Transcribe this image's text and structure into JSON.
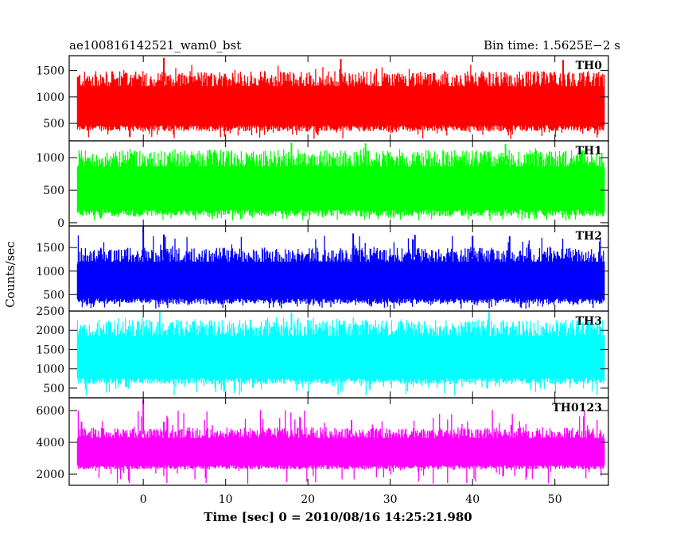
{
  "chart_data": {
    "type": "line",
    "title": "ae100816142521_wam0_bst",
    "subtitle": "Bin time: 1.5625E−2 s",
    "xlabel": "Time [sec] 0 = 2010/08/16 14:25:21.980",
    "ylabel": "Counts/sec",
    "xlim": [
      -9,
      56.5
    ],
    "xticks": [
      "0",
      "10",
      "20",
      "30",
      "40",
      "50"
    ],
    "x_range_of_data": [
      -8,
      56
    ],
    "grid": false,
    "panels": [
      {
        "name": "TH0",
        "color": "#ff0000",
        "ylim": [
          170,
          1780
        ],
        "yticks": [
          "500",
          "1000",
          "1500"
        ],
        "typical_low": 350,
        "typical_high": 1300,
        "min": 200,
        "max": 1750,
        "spikes": [
          {
            "x": 2.5,
            "y": 1740
          },
          {
            "x": 24,
            "y": 1720
          },
          {
            "x": 51,
            "y": 1700
          }
        ]
      },
      {
        "name": "TH1",
        "color": "#00ff00",
        "ylim": [
          -50,
          1260
        ],
        "yticks": [
          "0",
          "500",
          "1000"
        ],
        "typical_low": 100,
        "typical_high": 950,
        "min": 30,
        "max": 1240,
        "spikes": [
          {
            "x": 18,
            "y": 1230
          },
          {
            "x": 27,
            "y": 1220
          },
          {
            "x": 44,
            "y": 1210
          }
        ]
      },
      {
        "name": "TH2",
        "color": "#0000ff",
        "ylim": [
          150,
          1960
        ],
        "yticks": [
          "500",
          "1000",
          "1500"
        ],
        "typical_low": 300,
        "typical_high": 1300,
        "min": 200,
        "max": 1960,
        "spikes": [
          {
            "x": 0,
            "y": 1960
          },
          {
            "x": 2.5,
            "y": 1780
          },
          {
            "x": 25.5,
            "y": 1800
          },
          {
            "x": 33,
            "y": 1770
          },
          {
            "x": 40,
            "y": 1750
          },
          {
            "x": 44.5,
            "y": 1740
          }
        ]
      },
      {
        "name": "TH3",
        "color": "#00ffff",
        "ylim": [
          250,
          2500
        ],
        "yticks": [
          "500",
          "1000",
          "1500",
          "2000",
          "2500"
        ],
        "typical_low": 600,
        "typical_high": 2000,
        "min": 300,
        "max": 2500,
        "spikes": [
          {
            "x": 2,
            "y": 2480
          },
          {
            "x": 18,
            "y": 2460
          },
          {
            "x": 42,
            "y": 2470
          }
        ]
      },
      {
        "name": "TH0123",
        "color": "#ff00ff",
        "ylim": [
          1300,
          6800
        ],
        "yticks": [
          "2000",
          "4000",
          "6000"
        ],
        "typical_low": 2300,
        "typical_high": 4500,
        "min": 1400,
        "max": 6700,
        "spikes": [
          {
            "x": 0,
            "y": 6700
          },
          {
            "x": 2.5,
            "y": 5300
          },
          {
            "x": 25.3,
            "y": 5400
          },
          {
            "x": 44.7,
            "y": 5100
          },
          {
            "x": -7.5,
            "y": 5300
          }
        ]
      }
    ]
  }
}
